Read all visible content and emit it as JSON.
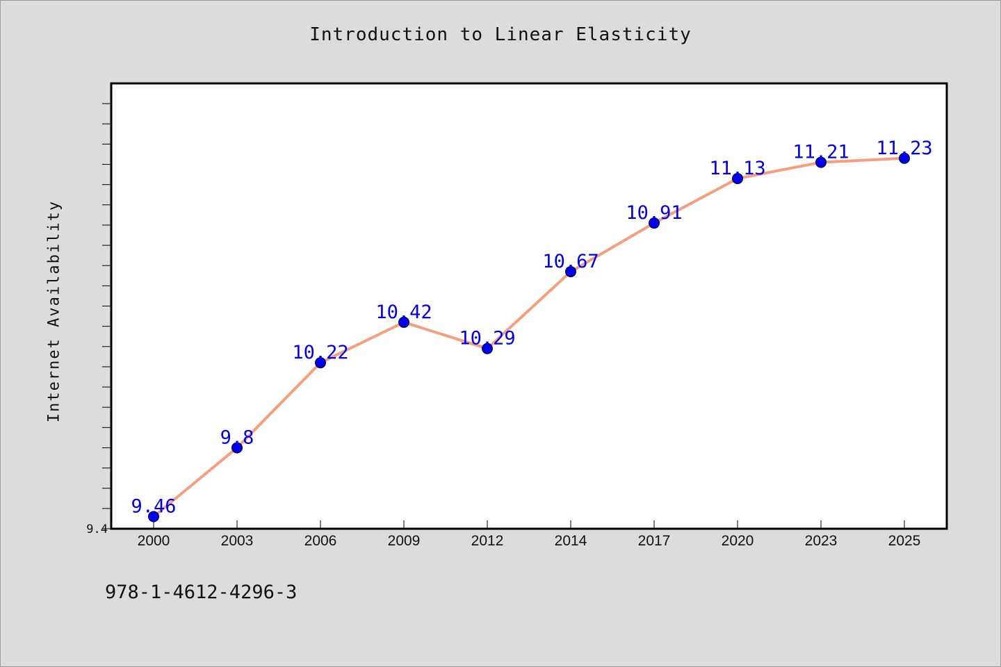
{
  "chart_data": {
    "type": "line",
    "title": "Introduction to Linear Elasticity",
    "xlabel": "",
    "ylabel": "Internet Availability",
    "categories": [
      "2000",
      "2003",
      "2006",
      "2009",
      "2012",
      "2014",
      "2017",
      "2020",
      "2023",
      "2025"
    ],
    "series": [
      {
        "values": [
          9.46,
          9.8,
          10.22,
          10.42,
          10.29,
          10.67,
          10.91,
          11.13,
          11.21,
          11.23
        ],
        "data_labels": [
          "9.46",
          "9.8",
          "10.22",
          "10.42",
          "10.29",
          "10.67",
          "10.91",
          "11.13",
          "11.21",
          "11.23"
        ],
        "line_color": "#f59e80",
        "marker_color": "#0000ee",
        "label_color": "#0000ee"
      }
    ],
    "ylim": [
      9.4,
      11.6
    ],
    "y_tick_labels": [
      "9.4"
    ],
    "grid": false,
    "legend": "none"
  },
  "footer": {
    "identifier": "978-1-4612-4296-3"
  }
}
